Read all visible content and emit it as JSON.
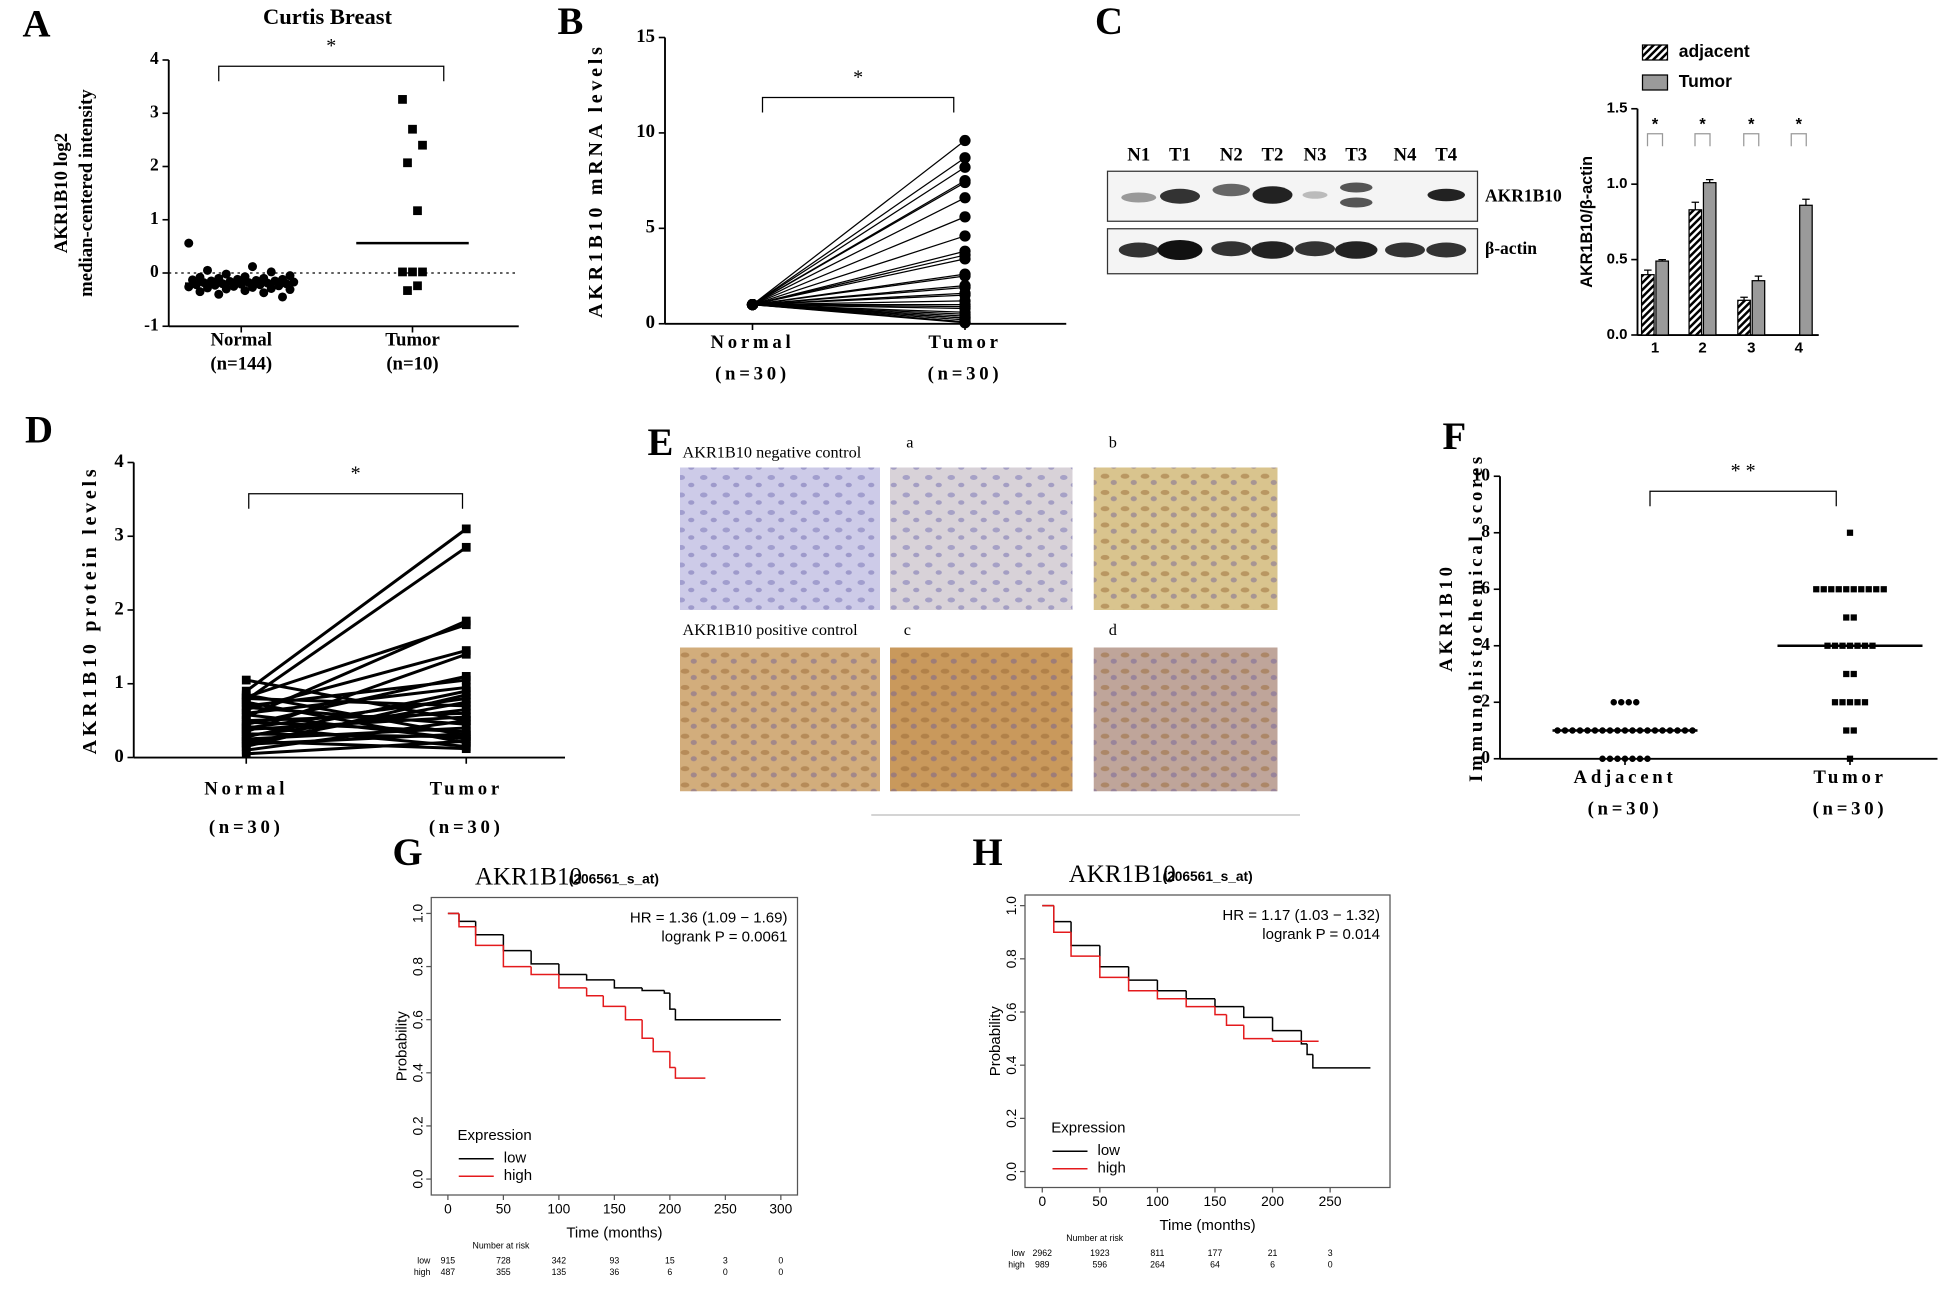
{
  "panel_labels": [
    "A",
    "B",
    "C",
    "D",
    "E",
    "F",
    "G",
    "H"
  ],
  "blot": {
    "lanes": [
      "N1",
      "T1",
      "N2",
      "T2",
      "N3",
      "T3",
      "N4",
      "T4"
    ],
    "proteins": [
      "AKR1B10",
      "β-actin"
    ]
  },
  "ihc": {
    "labels": [
      "AKR1B10 negative control",
      "a",
      "b",
      "AKR1B10 positive control",
      "c",
      "d"
    ]
  },
  "chart_data": [
    {
      "type": "dotplot",
      "title": "Curtis Breast",
      "ylabel": [
        "AKR1B10 log2",
        "median-centered intensity"
      ],
      "ylim": [
        -1,
        4
      ],
      "yticks": [
        -1,
        0,
        1,
        2,
        3,
        4
      ],
      "refline": 0,
      "annotation": "*",
      "groups": [
        {
          "label": "Normal",
          "sublabel": "(n=144)",
          "marker": "circle",
          "mean": -0.2,
          "values": [
            0.56,
            0.12,
            0.05,
            0.02,
            -0.02,
            -0.05,
            -0.07,
            -0.08,
            -0.1,
            -0.1,
            -0.12,
            -0.12,
            -0.13,
            -0.14,
            -0.15,
            -0.15,
            -0.16,
            -0.17,
            -0.18,
            -0.18,
            -0.19,
            -0.2,
            -0.2,
            -0.21,
            -0.22,
            -0.22,
            -0.23,
            -0.24,
            -0.25,
            -0.26,
            -0.27,
            -0.28,
            -0.29,
            -0.3,
            -0.31,
            -0.33,
            -0.35,
            -0.37,
            -0.4,
            -0.45
          ]
        },
        {
          "label": "Tumor",
          "sublabel": "(n=10)",
          "marker": "square",
          "mean": 0.56,
          "values": [
            3.26,
            2.7,
            2.4,
            2.07,
            1.17,
            0.02,
            0.02,
            0.02,
            -0.33,
            -0.24
          ]
        }
      ]
    },
    {
      "type": "paired",
      "ylabel": "AKR1B10 mRNA levels",
      "ylim": [
        0,
        15
      ],
      "yticks": [
        0,
        5,
        10,
        15
      ],
      "annotation": "*",
      "groups": [
        {
          "label": "Normal",
          "sublabel": "(n=30)",
          "values": [
            1,
            1,
            1,
            1,
            1,
            1,
            1,
            1,
            1,
            1,
            1,
            1,
            1,
            1,
            1,
            1,
            1,
            1,
            1,
            1,
            1,
            1,
            1,
            1,
            1,
            1,
            1,
            1,
            1,
            1
          ]
        },
        {
          "label": "Tumor",
          "sublabel": "(n=30)",
          "values": [
            9.6,
            8.7,
            8.2,
            7.5,
            7.4,
            6.6,
            5.6,
            4.6,
            3.8,
            3.6,
            3.4,
            2.6,
            2.5,
            2.0,
            1.9,
            1.6,
            1.5,
            1.2,
            1.0,
            0.9,
            0.8,
            0.6,
            0.5,
            0.4,
            0.3,
            0.3,
            0.2,
            0.1,
            0.1,
            0.05
          ]
        }
      ]
    },
    {
      "type": "bar",
      "ylabel": "AKR1B10/β-actin",
      "categories": [
        "1",
        "2",
        "3",
        "4"
      ],
      "ylim": [
        0,
        1.5
      ],
      "yticks": [
        {
          "value": 0,
          "label": "0.0"
        },
        0.5,
        {
          "value": 1,
          "label": "1.0"
        },
        1.5
      ],
      "significance": [
        "*",
        "*",
        "*",
        "*"
      ],
      "series": [
        {
          "name": "adjacent",
          "pattern": "hatch",
          "color": "#000000",
          "values": [
            0.4,
            0.83,
            0.23,
            null
          ],
          "errors": [
            0.03,
            0.05,
            0.02,
            null
          ]
        },
        {
          "name": "Tumor",
          "color": "#9a9a9a",
          "values": [
            0.49,
            1.01,
            0.36,
            0.86
          ],
          "errors": [
            0.01,
            0.02,
            0.03,
            0.04
          ]
        }
      ]
    },
    {
      "type": "paired",
      "ylabel": "AKR1B10 protein levels",
      "ylim": [
        0,
        4
      ],
      "yticks": [
        0,
        1,
        2,
        3,
        4
      ],
      "annotation": "*",
      "groups": [
        {
          "label": "Normal",
          "sublabel": "(n=30)",
          "values": [
            1.05,
            0.9,
            0.85,
            0.82,
            0.8,
            0.78,
            0.75,
            0.7,
            0.68,
            0.65,
            0.6,
            0.58,
            0.55,
            0.5,
            0.48,
            0.45,
            0.42,
            0.4,
            0.38,
            0.35,
            0.32,
            0.3,
            0.28,
            0.25,
            0.22,
            0.2,
            0.18,
            0.15,
            0.1,
            0.05
          ]
        },
        {
          "label": "Tumor",
          "sublabel": "(n=30)",
          "values": [
            0.5,
            3.1,
            0.3,
            1.8,
            0.7,
            2.85,
            0.2,
            1.05,
            0.45,
            1.45,
            0.95,
            0.25,
            1.85,
            0.6,
            0.35,
            1.1,
            0.15,
            0.8,
            0.55,
            1.4,
            0.28,
            0.65,
            0.9,
            0.4,
            0.12,
            0.75,
            0.32,
            0.85,
            0.5,
            0.22
          ]
        }
      ]
    },
    {
      "type": "dotplot",
      "ylabel": [
        "AKR1B10",
        "Immunohistochemical scores"
      ],
      "ylim": [
        0,
        10
      ],
      "yticks": [
        0,
        2,
        4,
        6,
        8,
        10
      ],
      "annotation": "* *",
      "groups": [
        {
          "label": "Adjacent",
          "sublabel": "(n=30)",
          "marker": "circle",
          "mean": 1,
          "values": [
            2,
            2,
            2,
            2,
            1,
            1,
            1,
            1,
            1,
            1,
            1,
            1,
            1,
            1,
            1,
            1,
            1,
            1,
            1,
            1,
            1,
            1,
            1,
            0,
            0,
            0,
            0,
            0,
            0,
            0
          ]
        },
        {
          "label": "Tumor",
          "sublabel": "(n=30)",
          "marker": "square",
          "mean": 4,
          "values": [
            8,
            6,
            6,
            6,
            6,
            6,
            6,
            6,
            6,
            6,
            6,
            5,
            5,
            4,
            4,
            4,
            4,
            4,
            4,
            4,
            3,
            3,
            2,
            2,
            2,
            2,
            2,
            1,
            1,
            0
          ]
        }
      ]
    },
    {
      "type": "survival",
      "title": "AKR1B10",
      "subtitle": "(206561_s_at)",
      "xlabel": "Time (months)",
      "ylabel": "Probability",
      "xlim": [
        -15,
        315
      ],
      "xticks": [
        0,
        50,
        100,
        150,
        200,
        250,
        300
      ],
      "ylim": [
        -0.06,
        1.06
      ],
      "yticks": [
        {
          "value": 0,
          "label": "0.0"
        },
        0.2,
        0.4,
        0.6,
        0.8,
        {
          "value": 1,
          "label": "1.0"
        }
      ],
      "annotations": [
        "HR = 1.36 (1.09 − 1.69)",
        "logrank P = 0.0061"
      ],
      "legend_title": "Expression",
      "series": [
        {
          "name": "low",
          "color": "#000000",
          "x": [
            0,
            10,
            25,
            50,
            75,
            100,
            125,
            150,
            175,
            195,
            200,
            205,
            300
          ],
          "values": [
            1,
            0.97,
            0.92,
            0.86,
            0.81,
            0.77,
            0.75,
            0.72,
            0.71,
            0.7,
            0.64,
            0.6,
            0.6
          ]
        },
        {
          "name": "high",
          "color": "#e41a1c",
          "x": [
            0,
            10,
            25,
            50,
            75,
            100,
            125,
            140,
            160,
            175,
            185,
            200,
            205,
            232
          ],
          "values": [
            1,
            0.95,
            0.88,
            0.8,
            0.77,
            0.72,
            0.69,
            0.65,
            0.6,
            0.53,
            0.48,
            0.42,
            0.38,
            0.38
          ]
        }
      ],
      "risk": {
        "title": "Number at risk",
        "rows": [
          {
            "name": "low",
            "values": [
              915,
              728,
              342,
              93,
              15,
              3,
              0
            ]
          },
          {
            "name": "high",
            "values": [
              487,
              355,
              135,
              36,
              6,
              0,
              0
            ]
          }
        ]
      }
    },
    {
      "type": "survival",
      "title": "AKR1B10",
      "subtitle": "(206561_s_at)",
      "xlabel": "Time (months)",
      "ylabel": "Probability",
      "xlim": [
        -15,
        302
      ],
      "xticks": [
        0,
        50,
        100,
        150,
        200,
        250
      ],
      "ylim": [
        -0.06,
        1.04
      ],
      "yticks": [
        {
          "value": 0,
          "label": "0.0"
        },
        0.2,
        0.4,
        0.6,
        0.8,
        {
          "value": 1,
          "label": "1.0"
        }
      ],
      "annotations": [
        "HR = 1.17 (1.03 − 1.32)",
        "logrank P = 0.014"
      ],
      "legend_title": "Expression",
      "series": [
        {
          "name": "low",
          "color": "#000000",
          "x": [
            0,
            10,
            25,
            50,
            75,
            100,
            125,
            150,
            175,
            200,
            225,
            230,
            235,
            285
          ],
          "values": [
            1,
            0.94,
            0.85,
            0.77,
            0.72,
            0.68,
            0.65,
            0.62,
            0.58,
            0.53,
            0.48,
            0.44,
            0.39,
            0.39
          ]
        },
        {
          "name": "high",
          "color": "#e41a1c",
          "x": [
            0,
            10,
            25,
            50,
            75,
            100,
            125,
            150,
            160,
            175,
            200,
            240
          ],
          "values": [
            1,
            0.9,
            0.81,
            0.73,
            0.68,
            0.65,
            0.62,
            0.59,
            0.55,
            0.5,
            0.49,
            0.49
          ]
        }
      ],
      "risk": {
        "title": "Number at risk",
        "rows": [
          {
            "name": "low",
            "values": [
              2962,
              1923,
              811,
              177,
              21,
              3
            ]
          },
          {
            "name": "high",
            "values": [
              989,
              596,
              264,
              64,
              6,
              0
            ]
          }
        ]
      }
    }
  ]
}
